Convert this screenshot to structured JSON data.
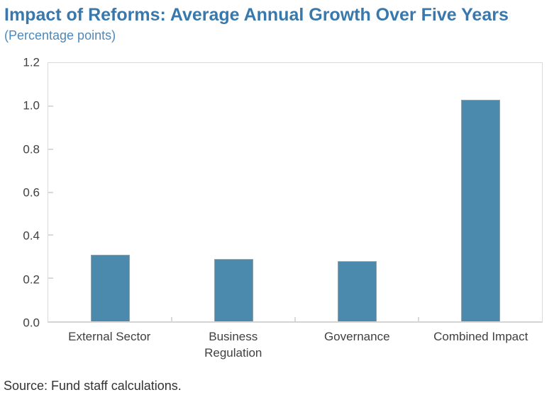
{
  "header": {
    "title": "Impact of Reforms: Average Annual Growth Over Five Years",
    "subtitle": "(Percentage points)"
  },
  "footer": {
    "source": "Source: Fund staff calculations."
  },
  "colors": {
    "title_blue": "#3878ad",
    "subtitle_blue": "#4d89ba",
    "bar_fill": "#4b8aac",
    "bar_border": "#8da4b0",
    "axis_gray": "#d9d9d9",
    "label_gray": "#404040"
  },
  "chart_data": {
    "type": "bar",
    "title": "Impact of Reforms: Average Annual Growth Over Five Years",
    "subtitle": "(Percentage points)",
    "categories": [
      "External Sector",
      "Business Regulation",
      "Governance",
      "Combined Impact"
    ],
    "values": [
      0.31,
      0.29,
      0.28,
      1.03
    ],
    "xlabel": "",
    "ylabel": "",
    "ylim": [
      0,
      1.2
    ],
    "yticks": [
      0.0,
      0.2,
      0.4,
      0.6,
      0.8,
      1.0,
      1.2
    ],
    "ytick_labels": [
      "0.0",
      "0.2",
      "0.4",
      "0.6",
      "0.8",
      "1.0",
      "1.2"
    ],
    "grid": false,
    "legend": "none",
    "bar_color": "#4b8aac",
    "source": "Source: Fund staff calculations."
  }
}
